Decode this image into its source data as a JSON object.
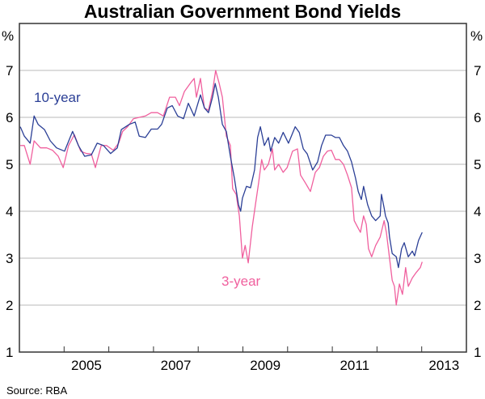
{
  "chart_data": {
    "type": "line",
    "title": "Australian Government Bond Yields",
    "ylabel_left": "%",
    "ylabel_right": "%",
    "ylim": [
      1,
      8
    ],
    "yticks": [
      1,
      2,
      3,
      4,
      5,
      6,
      7
    ],
    "xlim": [
      2004,
      2014
    ],
    "xtick_labels": [
      "2005",
      "2007",
      "2009",
      "2011",
      "2013"
    ],
    "grid": true,
    "source": "Source: RBA",
    "series": [
      {
        "name": "10-year",
        "color": "#2b3f96",
        "points": [
          [
            2004.02,
            5.8
          ],
          [
            2004.11,
            5.6
          ],
          [
            2004.24,
            5.45
          ],
          [
            2004.33,
            6.03
          ],
          [
            2004.42,
            5.85
          ],
          [
            2004.56,
            5.74
          ],
          [
            2004.69,
            5.5
          ],
          [
            2004.83,
            5.35
          ],
          [
            2005.01,
            5.28
          ],
          [
            2005.19,
            5.7
          ],
          [
            2005.32,
            5.4
          ],
          [
            2005.46,
            5.17
          ],
          [
            2005.61,
            5.2
          ],
          [
            2005.74,
            5.45
          ],
          [
            2005.88,
            5.4
          ],
          [
            2006.04,
            5.23
          ],
          [
            2006.19,
            5.35
          ],
          [
            2006.28,
            5.74
          ],
          [
            2006.46,
            5.85
          ],
          [
            2006.59,
            5.9
          ],
          [
            2006.68,
            5.6
          ],
          [
            2006.82,
            5.57
          ],
          [
            2006.95,
            5.75
          ],
          [
            2007.09,
            5.75
          ],
          [
            2007.18,
            5.85
          ],
          [
            2007.31,
            6.2
          ],
          [
            2007.42,
            6.25
          ],
          [
            2007.54,
            6.03
          ],
          [
            2007.67,
            5.97
          ],
          [
            2007.78,
            6.3
          ],
          [
            2007.91,
            6.03
          ],
          [
            2008.05,
            6.48
          ],
          [
            2008.14,
            6.2
          ],
          [
            2008.23,
            6.1
          ],
          [
            2008.32,
            6.43
          ],
          [
            2008.38,
            6.72
          ],
          [
            2008.45,
            6.43
          ],
          [
            2008.54,
            5.85
          ],
          [
            2008.63,
            5.7
          ],
          [
            2008.72,
            5.17
          ],
          [
            2008.81,
            4.7
          ],
          [
            2008.9,
            4.14
          ],
          [
            2008.95,
            4.0
          ],
          [
            2008.99,
            4.28
          ],
          [
            2009.08,
            4.53
          ],
          [
            2009.17,
            4.5
          ],
          [
            2009.26,
            4.88
          ],
          [
            2009.33,
            5.57
          ],
          [
            2009.39,
            5.8
          ],
          [
            2009.48,
            5.4
          ],
          [
            2009.57,
            5.57
          ],
          [
            2009.62,
            5.28
          ],
          [
            2009.71,
            5.57
          ],
          [
            2009.8,
            5.45
          ],
          [
            2009.9,
            5.68
          ],
          [
            2010.02,
            5.45
          ],
          [
            2010.17,
            5.8
          ],
          [
            2010.26,
            5.68
          ],
          [
            2010.35,
            5.33
          ],
          [
            2010.44,
            5.22
          ],
          [
            2010.56,
            4.88
          ],
          [
            2010.67,
            5.05
          ],
          [
            2010.76,
            5.4
          ],
          [
            2010.85,
            5.62
          ],
          [
            2010.98,
            5.62
          ],
          [
            2011.07,
            5.57
          ],
          [
            2011.16,
            5.57
          ],
          [
            2011.25,
            5.4
          ],
          [
            2011.34,
            5.28
          ],
          [
            2011.43,
            5.05
          ],
          [
            2011.52,
            4.7
          ],
          [
            2011.58,
            4.42
          ],
          [
            2011.65,
            4.25
          ],
          [
            2011.7,
            4.53
          ],
          [
            2011.79,
            4.14
          ],
          [
            2011.88,
            3.9
          ],
          [
            2011.97,
            3.8
          ],
          [
            2012.07,
            3.9
          ],
          [
            2012.1,
            4.36
          ],
          [
            2012.16,
            4.07
          ],
          [
            2012.19,
            3.9
          ],
          [
            2012.25,
            3.75
          ],
          [
            2012.28,
            3.45
          ],
          [
            2012.34,
            3.1
          ],
          [
            2012.43,
            3.03
          ],
          [
            2012.48,
            2.8
          ],
          [
            2012.55,
            3.2
          ],
          [
            2012.61,
            3.33
          ],
          [
            2012.7,
            3.03
          ],
          [
            2012.79,
            3.15
          ],
          [
            2012.84,
            3.05
          ],
          [
            2012.93,
            3.38
          ],
          [
            2013.01,
            3.55
          ]
        ]
      },
      {
        "name": "3-year",
        "color": "#f0609e",
        "points": [
          [
            2004.02,
            5.4
          ],
          [
            2004.11,
            5.4
          ],
          [
            2004.24,
            5.0
          ],
          [
            2004.33,
            5.5
          ],
          [
            2004.47,
            5.35
          ],
          [
            2004.61,
            5.35
          ],
          [
            2004.74,
            5.3
          ],
          [
            2004.87,
            5.17
          ],
          [
            2004.98,
            4.93
          ],
          [
            2005.1,
            5.4
          ],
          [
            2005.23,
            5.63
          ],
          [
            2005.37,
            5.28
          ],
          [
            2005.5,
            5.23
          ],
          [
            2005.61,
            5.22
          ],
          [
            2005.7,
            4.93
          ],
          [
            2005.83,
            5.4
          ],
          [
            2005.95,
            5.4
          ],
          [
            2006.1,
            5.3
          ],
          [
            2006.22,
            5.45
          ],
          [
            2006.31,
            5.7
          ],
          [
            2006.42,
            5.8
          ],
          [
            2006.55,
            5.97
          ],
          [
            2006.68,
            6.0
          ],
          [
            2006.82,
            6.03
          ],
          [
            2006.95,
            6.1
          ],
          [
            2007.09,
            6.1
          ],
          [
            2007.22,
            6.03
          ],
          [
            2007.36,
            6.43
          ],
          [
            2007.49,
            6.43
          ],
          [
            2007.58,
            6.25
          ],
          [
            2007.69,
            6.55
          ],
          [
            2007.82,
            6.72
          ],
          [
            2007.91,
            6.83
          ],
          [
            2007.96,
            6.43
          ],
          [
            2008.05,
            6.83
          ],
          [
            2008.14,
            6.2
          ],
          [
            2008.23,
            6.15
          ],
          [
            2008.32,
            6.55
          ],
          [
            2008.39,
            7.0
          ],
          [
            2008.47,
            6.72
          ],
          [
            2008.54,
            6.43
          ],
          [
            2008.63,
            5.6
          ],
          [
            2008.72,
            5.4
          ],
          [
            2008.77,
            4.48
          ],
          [
            2008.85,
            4.36
          ],
          [
            2008.92,
            3.9
          ],
          [
            2008.99,
            3.0
          ],
          [
            2009.05,
            3.27
          ],
          [
            2009.12,
            2.9
          ],
          [
            2009.21,
            3.67
          ],
          [
            2009.28,
            4.14
          ],
          [
            2009.35,
            4.6
          ],
          [
            2009.42,
            5.1
          ],
          [
            2009.48,
            4.88
          ],
          [
            2009.57,
            5.0
          ],
          [
            2009.66,
            5.33
          ],
          [
            2009.71,
            4.88
          ],
          [
            2009.8,
            5.0
          ],
          [
            2009.9,
            4.83
          ],
          [
            2009.99,
            4.93
          ],
          [
            2010.11,
            5.28
          ],
          [
            2010.22,
            5.33
          ],
          [
            2010.29,
            4.77
          ],
          [
            2010.4,
            4.6
          ],
          [
            2010.51,
            4.42
          ],
          [
            2010.62,
            4.83
          ],
          [
            2010.71,
            4.93
          ],
          [
            2010.8,
            5.17
          ],
          [
            2010.89,
            5.28
          ],
          [
            2010.98,
            5.3
          ],
          [
            2011.07,
            5.1
          ],
          [
            2011.16,
            5.1
          ],
          [
            2011.25,
            5.0
          ],
          [
            2011.34,
            4.77
          ],
          [
            2011.43,
            4.5
          ],
          [
            2011.49,
            3.8
          ],
          [
            2011.56,
            3.67
          ],
          [
            2011.63,
            3.55
          ],
          [
            2011.7,
            3.9
          ],
          [
            2011.76,
            3.72
          ],
          [
            2011.81,
            3.2
          ],
          [
            2011.88,
            3.03
          ],
          [
            2011.97,
            3.27
          ],
          [
            2012.07,
            3.45
          ],
          [
            2012.16,
            3.8
          ],
          [
            2012.21,
            3.55
          ],
          [
            2012.28,
            3.0
          ],
          [
            2012.34,
            2.53
          ],
          [
            2012.39,
            2.4
          ],
          [
            2012.43,
            2.0
          ],
          [
            2012.5,
            2.45
          ],
          [
            2012.57,
            2.23
          ],
          [
            2012.64,
            2.8
          ],
          [
            2012.7,
            2.4
          ],
          [
            2012.79,
            2.58
          ],
          [
            2012.88,
            2.7
          ],
          [
            2012.97,
            2.8
          ],
          [
            2013.01,
            2.92
          ]
        ]
      }
    ]
  }
}
